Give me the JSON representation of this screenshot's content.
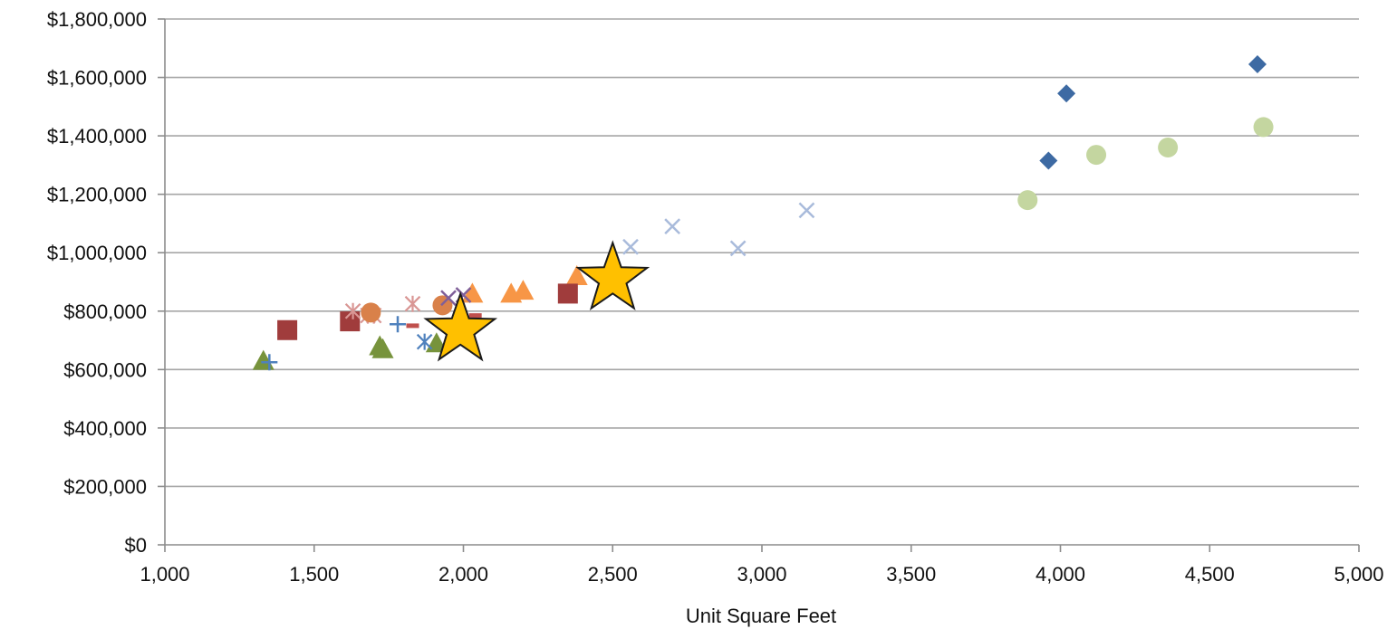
{
  "chart_data": {
    "type": "scatter",
    "xlabel": "Unit Square Feet",
    "ylabel": "",
    "xlim": [
      1000,
      5000
    ],
    "ylim": [
      0,
      1800000
    ],
    "x_ticks": [
      1000,
      1500,
      2000,
      2500,
      3000,
      3500,
      4000,
      4500,
      5000
    ],
    "y_ticks": [
      0,
      200000,
      400000,
      600000,
      800000,
      1000000,
      1200000,
      1400000,
      1600000,
      1800000
    ],
    "x_tick_labels": [
      "1,000",
      "1,500",
      "2,000",
      "2,500",
      "3,000",
      "3,500",
      "4,000",
      "4,500",
      "5,000"
    ],
    "y_tick_labels": [
      "$0",
      "$200,000",
      "$400,000",
      "$600,000",
      "$800,000",
      "$1,000,000",
      "$1,200,000",
      "$1,400,000",
      "$1,600,000",
      "$1,800,000"
    ],
    "grid": "horizontal",
    "legend": "none",
    "series": [
      {
        "marker": "diamond",
        "color": "#3d6aa3",
        "points": [
          [
            3960,
            1315000
          ],
          [
            4020,
            1545000
          ],
          [
            4660,
            1645000
          ]
        ]
      },
      {
        "marker": "circle",
        "color": "#c4d6a0",
        "points": [
          [
            3890,
            1180000
          ],
          [
            4120,
            1335000
          ],
          [
            4360,
            1360000
          ],
          [
            4680,
            1430000
          ]
        ]
      },
      {
        "marker": "x",
        "color": "#a9bbdb",
        "points": [
          [
            2560,
            1020000
          ],
          [
            2700,
            1090000
          ],
          [
            2920,
            1015000
          ],
          [
            3150,
            1145000
          ]
        ]
      },
      {
        "marker": "triangle",
        "color": "#f79646",
        "points": [
          [
            2030,
            860000
          ],
          [
            2160,
            860000
          ],
          [
            2200,
            870000
          ],
          [
            2380,
            920000
          ]
        ]
      },
      {
        "marker": "square",
        "color": "#a03c3c",
        "points": [
          [
            1410,
            735000
          ],
          [
            1620,
            765000
          ],
          [
            2350,
            860000
          ]
        ]
      },
      {
        "marker": "triangle",
        "color": "#77933c",
        "points": [
          [
            1330,
            630000
          ],
          [
            1720,
            680000
          ],
          [
            1730,
            670000
          ],
          [
            1910,
            690000
          ]
        ]
      },
      {
        "marker": "asterisk",
        "color": "#d99694",
        "points": [
          [
            1630,
            800000
          ],
          [
            1680,
            785000
          ],
          [
            1700,
            785000
          ],
          [
            1830,
            825000
          ]
        ]
      },
      {
        "marker": "circle",
        "color": "#d9814a",
        "points": [
          [
            1690,
            795000
          ],
          [
            1930,
            820000
          ]
        ]
      },
      {
        "marker": "plus",
        "color": "#4f81bd",
        "points": [
          [
            1350,
            625000
          ],
          [
            1780,
            755000
          ]
        ]
      },
      {
        "marker": "dash",
        "color": "#c0504d",
        "points": [
          [
            1830,
            750000
          ],
          [
            2040,
            785000
          ]
        ]
      },
      {
        "marker": "asterisk",
        "color": "#4f81bd",
        "points": [
          [
            1870,
            695000
          ]
        ]
      },
      {
        "marker": "x",
        "color": "#7f5f99",
        "points": [
          [
            1950,
            845000
          ],
          [
            2000,
            855000
          ]
        ]
      },
      {
        "marker": "star",
        "color": "#ffc000",
        "points": [
          [
            1990,
            735000
          ],
          [
            2500,
            910000
          ]
        ]
      }
    ]
  }
}
